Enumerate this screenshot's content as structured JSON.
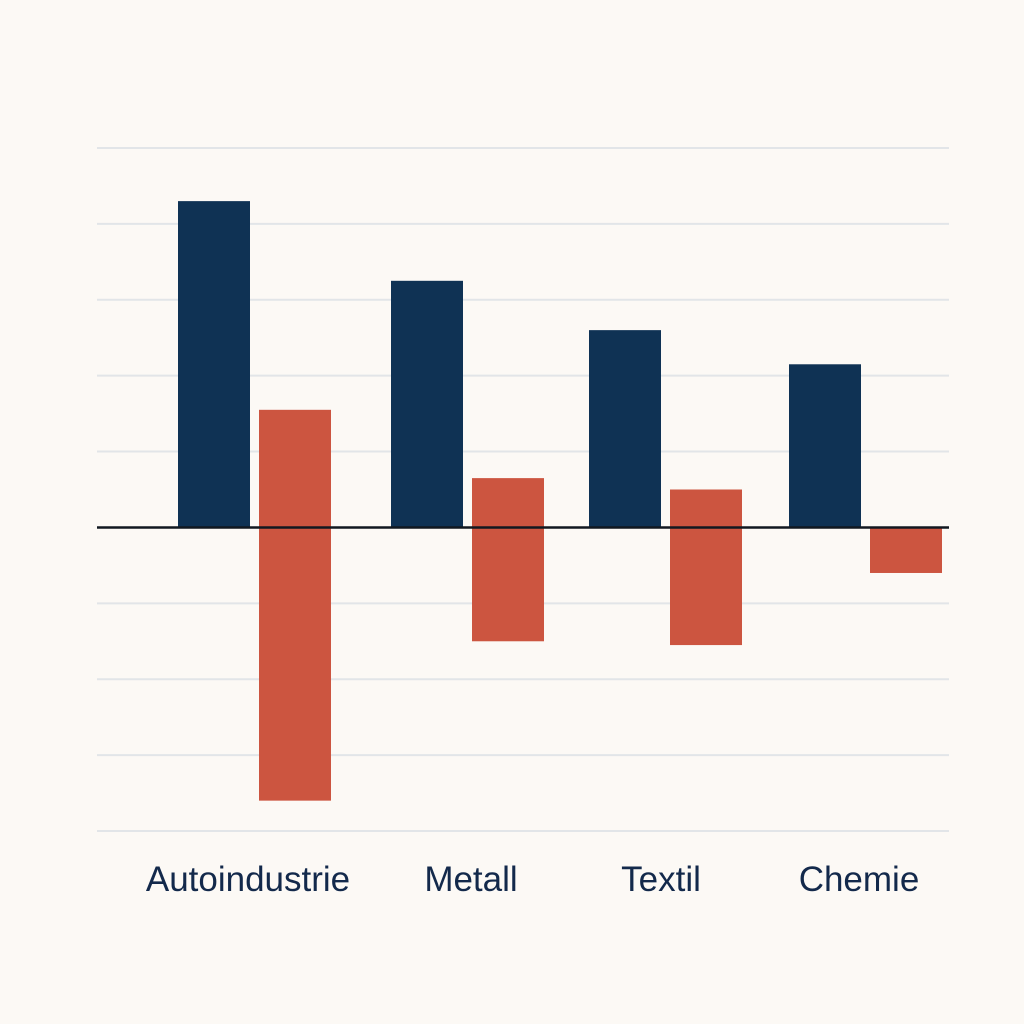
{
  "chart_data": {
    "type": "bar",
    "categories": [
      "Autoindustrie",
      "Metall",
      "Textil",
      "Chemie"
    ],
    "series": [
      {
        "values": [
          8.6,
          6.5,
          5.2,
          4.3
        ],
        "color": "#0f3254"
      },
      {
        "floating": true,
        "values": [
          [
            -7.2,
            3.1
          ],
          [
            -3.0,
            1.3
          ],
          [
            -3.1,
            1.0
          ],
          [
            -1.2,
            0
          ]
        ],
        "color": "#cc5540"
      }
    ],
    "ylim": [
      -8,
      10
    ],
    "grid": true,
    "legend": "none",
    "title": "",
    "xlabel": "",
    "ylabel": ""
  }
}
